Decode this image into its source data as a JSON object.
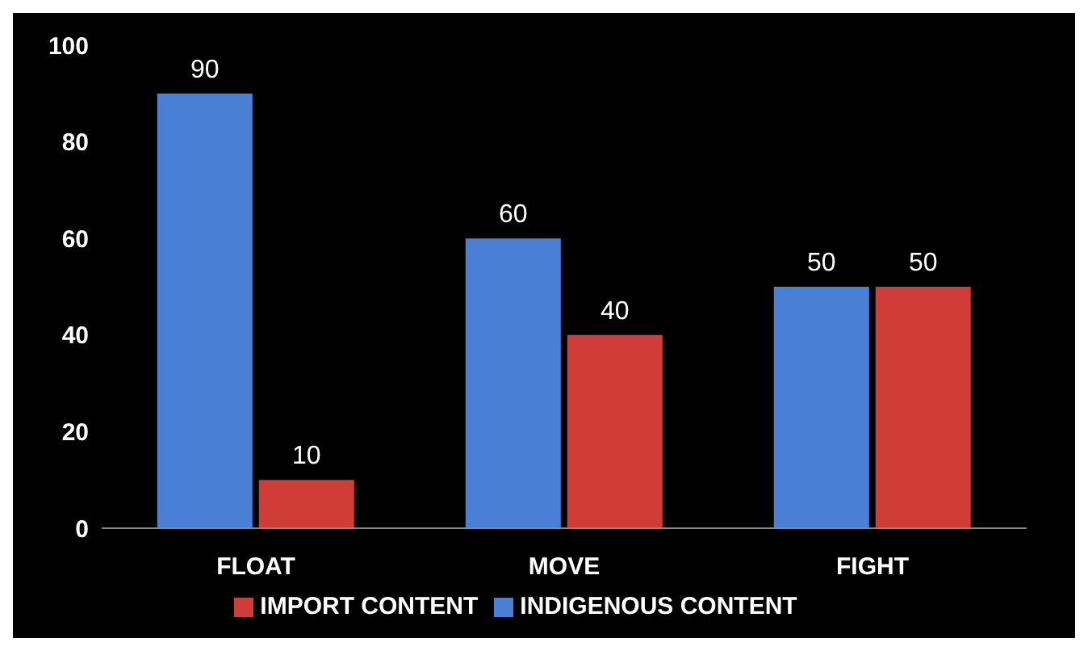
{
  "chart_data": {
    "type": "bar",
    "categories": [
      "FLOAT",
      "MOVE",
      "FIGHT"
    ],
    "series": [
      {
        "name": "INDIGENOUS CONTENT",
        "color": "#4a7fd6",
        "values": [
          90,
          60,
          50
        ]
      },
      {
        "name": "IMPORT CONTENT",
        "color": "#d03c38",
        "values": [
          10,
          40,
          50
        ]
      }
    ],
    "ylim": [
      0,
      100
    ],
    "yticks": [
      0,
      20,
      40,
      60,
      80,
      100
    ],
    "data_labels": true,
    "legend": "bottom",
    "grid": false
  }
}
